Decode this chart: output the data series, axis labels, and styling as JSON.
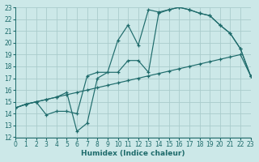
{
  "bg_color": "#cce8e8",
  "grid_color": "#aacccc",
  "line_color": "#1e6b6b",
  "xlabel": "Humidex (Indice chaleur)",
  "xlim": [
    0,
    23
  ],
  "ylim": [
    12,
    23
  ],
  "xticks": [
    0,
    1,
    2,
    3,
    4,
    5,
    6,
    7,
    8,
    9,
    10,
    11,
    12,
    13,
    14,
    15,
    16,
    17,
    18,
    19,
    20,
    21,
    22,
    23
  ],
  "yticks": [
    12,
    13,
    14,
    15,
    16,
    17,
    18,
    19,
    20,
    21,
    22,
    23
  ],
  "line1_x": [
    0,
    1,
    2,
    3,
    4,
    5,
    6,
    7,
    8,
    9,
    10,
    11,
    12,
    13,
    14,
    15,
    16,
    17,
    18,
    19,
    20,
    21,
    22,
    23
  ],
  "line1_y": [
    14.5,
    14.8,
    15.0,
    15.2,
    15.4,
    15.6,
    15.8,
    16.0,
    16.2,
    16.4,
    16.6,
    16.8,
    17.0,
    17.2,
    17.4,
    17.6,
    17.8,
    18.0,
    18.2,
    18.4,
    18.6,
    18.8,
    19.0,
    17.2
  ],
  "line2_x": [
    0,
    1,
    2,
    3,
    4,
    5,
    6,
    7,
    8,
    10,
    11,
    12,
    13,
    14,
    15,
    16,
    17,
    18,
    19,
    20,
    21,
    22,
    23
  ],
  "line2_y": [
    14.5,
    14.8,
    15.0,
    13.9,
    14.2,
    14.2,
    14.0,
    17.2,
    17.5,
    17.5,
    18.5,
    18.5,
    17.5,
    22.5,
    22.8,
    23.0,
    22.8,
    22.5,
    22.3,
    21.5,
    20.8,
    19.5,
    17.2
  ],
  "line3_x": [
    0,
    1,
    2,
    3,
    4,
    5,
    6,
    7,
    8,
    9,
    10,
    11,
    12,
    13,
    14,
    15,
    16,
    17,
    18,
    19,
    20,
    21,
    22,
    23
  ],
  "line3_y": [
    14.5,
    14.8,
    15.0,
    15.2,
    15.4,
    15.8,
    12.5,
    13.2,
    17.0,
    17.5,
    20.2,
    21.5,
    19.8,
    22.8,
    22.6,
    22.8,
    23.0,
    22.8,
    22.5,
    22.3,
    21.5,
    20.8,
    19.5,
    17.2
  ]
}
